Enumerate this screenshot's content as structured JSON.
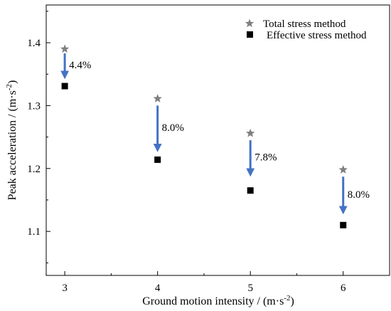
{
  "chart_data": {
    "type": "scatter",
    "title": "",
    "xlabel": "Ground motion intensity / (m·s",
    "xlabel_sup": "-2",
    "xlabel_end": ")",
    "ylabel": "Peak acceleration / (m·s",
    "ylabel_sup": "-2",
    "ylabel_end": ")",
    "xlim": [
      2.8,
      6.5
    ],
    "ylim": [
      1.03,
      1.46
    ],
    "x_ticks": [
      3,
      4,
      5,
      6
    ],
    "y_ticks": [
      1.1,
      1.2,
      1.3,
      1.4
    ],
    "x_tick_labels": [
      "3",
      "4",
      "5",
      "6"
    ],
    "y_tick_labels": [
      "1.1",
      "1.2",
      "1.3",
      "1.4"
    ],
    "grid": false,
    "legend_position": "top-right",
    "series": [
      {
        "name": "Total stress method",
        "marker": "star",
        "color": "#7f7f7f",
        "x": [
          3,
          4,
          5,
          6
        ],
        "y": [
          1.39,
          1.311,
          1.256,
          1.198
        ]
      },
      {
        "name": "Effective stress method",
        "marker": "square",
        "color": "#000000",
        "x": [
          3,
          4,
          5,
          6
        ],
        "y": [
          1.331,
          1.214,
          1.165,
          1.11
        ]
      }
    ],
    "annotations": [
      {
        "x": 3,
        "y_from": 1.383,
        "y_to": 1.342,
        "label": "4.4%"
      },
      {
        "x": 4,
        "y_from": 1.3,
        "y_to": 1.226,
        "label": "8.0%"
      },
      {
        "x": 5,
        "y_from": 1.245,
        "y_to": 1.187,
        "label": "7.8%"
      },
      {
        "x": 6,
        "y_from": 1.187,
        "y_to": 1.127,
        "label": "8.0%"
      }
    ],
    "arrow_color": "#4472c4"
  }
}
